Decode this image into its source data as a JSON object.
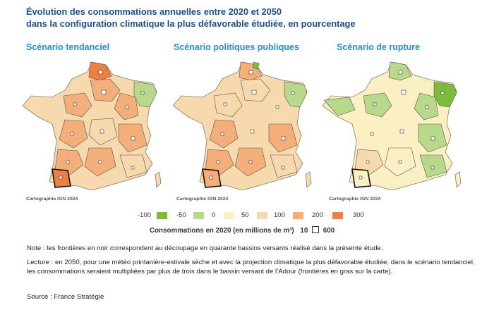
{
  "title": {
    "line1": "Évolution des consommations annuelles entre 2020 et 2050",
    "line2": "dans la configuration climatique la plus défavorable étudiée, en pourcentage"
  },
  "maps": [
    {
      "title": "Scénario tendanciel",
      "credit": "Cartographie IGN 2024"
    },
    {
      "title": "Scénario politiques publiques",
      "credit": "Cartographie IGN 2024"
    },
    {
      "title": "Scénario de rupture",
      "credit": "Cartographie IGN 2024"
    }
  ],
  "legend": {
    "labels": [
      "-100",
      "-50",
      "0",
      "50",
      "100",
      "200",
      "300"
    ],
    "colors": [
      "#7dbb3a",
      "#b8d98a",
      "#fbf0c4",
      "#f7d9ae",
      "#f3ae7a",
      "#ec7f41"
    ]
  },
  "size_legend": {
    "label": "Consommations en 2020 (en millions de m³)",
    "min": "10",
    "max": "600"
  },
  "notes": {
    "note": "Note : les frontières en noir correspondent au découpage en quarante bassins versants réalisé dans la présente étude.",
    "lecture": "Lecture : en 2050, pour une météo printanière-estivale sèche et avec la projection climatique la plus défavorable étudiée, dans le scénario tendanciel, les consommations seraient multipliées par plus de trois dans le bassin versant de l’Adour (frontières en gras sur la carte).",
    "source": "Source : France Stratégie"
  }
}
